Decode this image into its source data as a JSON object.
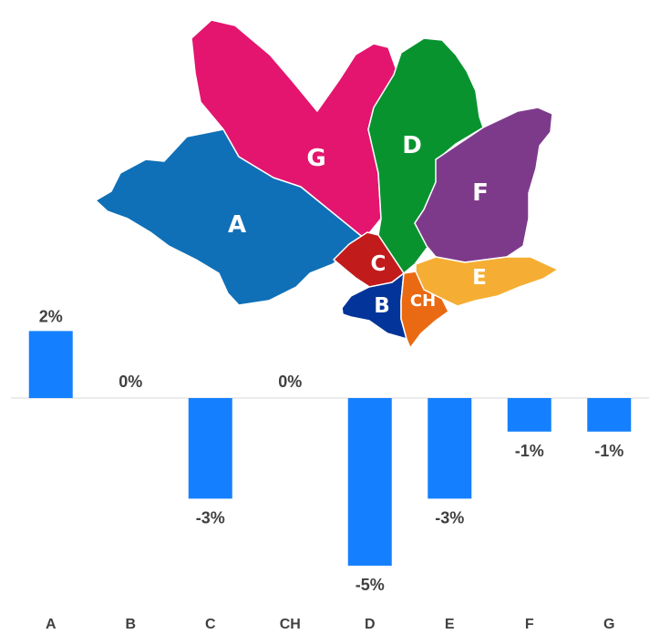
{
  "map": {
    "regions": [
      {
        "id": "A",
        "label": "A",
        "color": "#0f70b7"
      },
      {
        "id": "G",
        "label": "G",
        "color": "#e3156f"
      },
      {
        "id": "D",
        "label": "D",
        "color": "#08932f"
      },
      {
        "id": "F",
        "label": "F",
        "color": "#7e3a8a"
      },
      {
        "id": "C",
        "label": "C",
        "color": "#c21b1c"
      },
      {
        "id": "E",
        "label": "E",
        "color": "#f5ae33"
      },
      {
        "id": "B",
        "label": "B",
        "color": "#02349a"
      },
      {
        "id": "CH",
        "label": "CH",
        "color": "#ea6a13"
      }
    ]
  },
  "chart_data": {
    "type": "bar",
    "categories": [
      "A",
      "B",
      "C",
      "CH",
      "D",
      "E",
      "F",
      "G"
    ],
    "values": [
      2,
      0,
      -3,
      0,
      -5,
      -3,
      -1,
      -1
    ],
    "data_labels": [
      "2%",
      "0%",
      "-3%",
      "0%",
      "-5%",
      "-3%",
      "-1%",
      "-1%"
    ],
    "ylim": [
      -5,
      2
    ],
    "grid": false,
    "bar_color": "#1580ff",
    "baseline_color": "#d9d9d9"
  }
}
